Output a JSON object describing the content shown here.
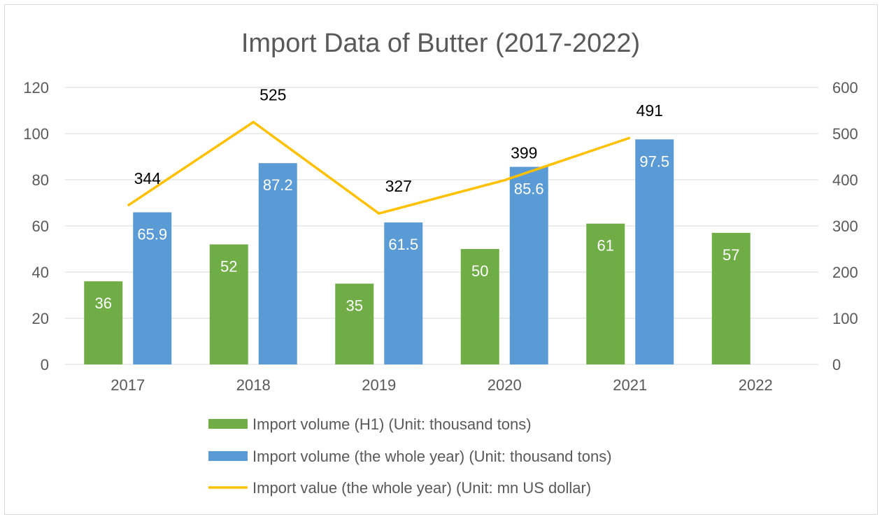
{
  "chart_data": {
    "type": "bar",
    "title": "Import Data of Butter (2017-2022)",
    "categories": [
      "2017",
      "2018",
      "2019",
      "2020",
      "2021",
      "2022"
    ],
    "series": [
      {
        "name": "Import volume (H1) (Unit: thousand tons)",
        "type": "bar",
        "axis": "left",
        "color": "#70ad47",
        "values": [
          36,
          52,
          35,
          50,
          61,
          57
        ]
      },
      {
        "name": "Import volume (the whole year) (Unit: thousand tons)",
        "type": "bar",
        "axis": "left",
        "color": "#5b9bd5",
        "values": [
          65.9,
          87.2,
          61.5,
          85.6,
          97.5,
          null
        ]
      },
      {
        "name": "Import value (the whole year) (Unit: mn US dollar)",
        "type": "line",
        "axis": "right",
        "color": "#ffc000",
        "values": [
          344,
          525,
          327,
          399,
          491,
          null
        ]
      }
    ],
    "y_left": {
      "min": 0,
      "max": 120,
      "ticks": [
        0,
        20,
        40,
        60,
        80,
        100,
        120
      ]
    },
    "y_right": {
      "min": 0,
      "max": 600,
      "ticks": [
        0,
        100,
        200,
        300,
        400,
        500,
        600
      ]
    },
    "grid": true,
    "legend_position": "bottom"
  }
}
